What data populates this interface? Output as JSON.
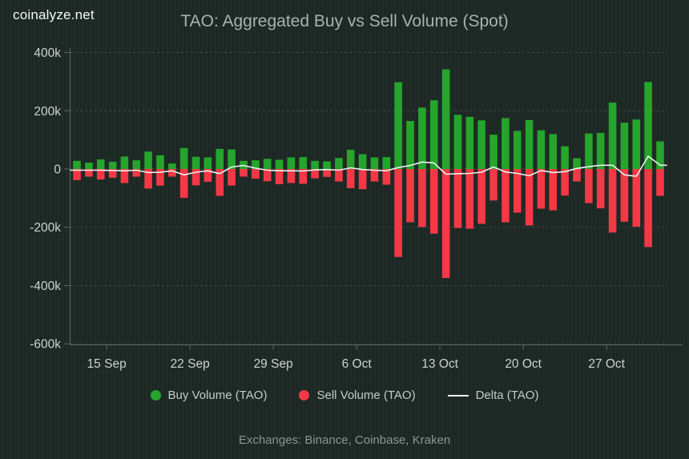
{
  "header": {
    "logo": "coinalyze.net",
    "title": "TAO: Aggregated Buy vs Sell Volume (Spot)"
  },
  "footer": {
    "exchanges_note": "Exchanges: Binance, Coinbase, Kraken"
  },
  "legend": {
    "items": [
      {
        "label": "Buy Volume (TAO)",
        "color": "#25a52c",
        "shape": "circle"
      },
      {
        "label": "Sell Volume (TAO)",
        "color": "#f43845",
        "shape": "circle"
      },
      {
        "label": "Delta (TAO)",
        "color": "#edf1f1",
        "shape": "line"
      }
    ]
  },
  "colors": {
    "background": "#1f2b27",
    "buy_green": "#25a52c",
    "sell_red": "#f43845",
    "delta_line": "#edf1f1",
    "grid": "#3d4a46",
    "axis": "#5c6865",
    "tick_text": "#ccd3d2",
    "title_text": "#a9b2b1"
  },
  "chart_data": {
    "type": "bar",
    "title": "TAO: Aggregated Buy vs Sell Volume (Spot)",
    "unit": "thousands of TAO",
    "grid": "dashed horizontal gridlines every 200k",
    "legend_position": "bottom center",
    "categories": [
      "13 Sep",
      "14 Sep",
      "15 Sep",
      "16 Sep",
      "17 Sep",
      "18 Sep",
      "19 Sep",
      "20 Sep",
      "21 Sep",
      "22 Sep",
      "23 Sep",
      "24 Sep",
      "25 Sep",
      "26 Sep",
      "27 Sep",
      "28 Sep",
      "29 Sep",
      "30 Sep",
      "1 Oct",
      "2 Oct",
      "3 Oct",
      "4 Oct",
      "5 Oct",
      "6 Oct",
      "7 Oct",
      "8 Oct",
      "9 Oct",
      "10 Oct",
      "11 Oct",
      "12 Oct",
      "13 Oct",
      "14 Oct",
      "15 Oct",
      "16 Oct",
      "17 Oct",
      "18 Oct",
      "19 Oct",
      "20 Oct",
      "21 Oct",
      "22 Oct",
      "23 Oct",
      "24 Oct",
      "25 Oct",
      "26 Oct",
      "27 Oct",
      "28 Oct",
      "29 Oct",
      "30 Oct",
      "31 Oct",
      "1 Nov"
    ],
    "series": [
      {
        "name": "Buy Volume (TAO)",
        "type": "bar",
        "color": "#25a52c",
        "values_k": [
          28,
          22,
          33,
          25,
          43,
          30,
          60,
          47,
          19,
          72,
          42,
          40,
          69,
          67,
          28,
          30,
          35,
          32,
          40,
          41,
          28,
          26,
          38,
          66,
          51,
          40,
          41,
          298,
          165,
          211,
          236,
          342,
          186,
          179,
          167,
          118,
          175,
          131,
          168,
          133,
          120,
          78,
          37,
          122,
          124,
          228,
          159,
          170,
          299,
          95
        ]
      },
      {
        "name": "Sell Volume (TAO)",
        "type": "bar",
        "color": "#f43845",
        "values_k": [
          -38,
          -26,
          -36,
          -30,
          -48,
          -26,
          -67,
          -57,
          -26,
          -99,
          -56,
          -44,
          -92,
          -57,
          -26,
          -33,
          -42,
          -52,
          -48,
          -51,
          -32,
          -27,
          -43,
          -66,
          -69,
          -43,
          -54,
          -302,
          -183,
          -199,
          -222,
          -374,
          -202,
          -205,
          -188,
          -108,
          -183,
          -150,
          -194,
          -136,
          -142,
          -91,
          -43,
          -117,
          -135,
          -218,
          -181,
          -198,
          -268,
          -92
        ]
      },
      {
        "name": "Delta (TAO)",
        "type": "line",
        "color": "#edf1f1",
        "values_k": [
          -4,
          -4,
          -4,
          -5,
          -6,
          -4,
          -12,
          -11,
          -6,
          -20,
          -11,
          -6,
          -16,
          7,
          12,
          3,
          -4,
          -6,
          -6,
          -7,
          -3,
          -2,
          -4,
          4,
          -2,
          -4,
          -6,
          5,
          12,
          24,
          21,
          -18,
          -16,
          -15,
          -11,
          7,
          -10,
          -15,
          -23,
          -5,
          -12,
          -9,
          2,
          8,
          13,
          13,
          -20,
          -25,
          44,
          13
        ]
      }
    ],
    "y_axis": {
      "tick_labels": [
        "400k",
        "200k",
        "0",
        "-200k",
        "-400k",
        "-600k"
      ],
      "tick_values_k": [
        400,
        200,
        0,
        -200,
        -400,
        -600
      ],
      "ylim_k": [
        -610,
        415
      ]
    },
    "x_axis": {
      "tick_labels": [
        "15 Sep",
        "22 Sep",
        "29 Sep",
        "6 Oct",
        "13 Oct",
        "20 Oct",
        "27 Oct"
      ],
      "tick_indices": [
        2,
        9,
        16,
        23,
        30,
        37,
        44
      ]
    }
  }
}
